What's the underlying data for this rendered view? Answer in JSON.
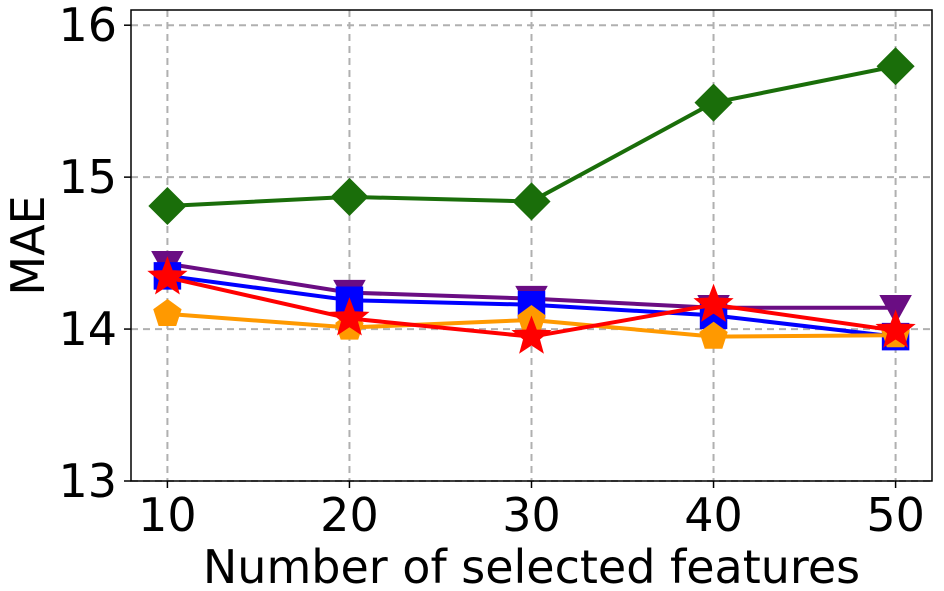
{
  "chart_data": {
    "type": "line",
    "title": "",
    "xlabel": "Number of selected features",
    "ylabel": "MAE",
    "x": [
      10,
      20,
      30,
      40,
      50
    ],
    "xticks": [
      "10",
      "20",
      "30",
      "40",
      "50"
    ],
    "yticks": [
      "13",
      "14",
      "15",
      "16"
    ],
    "ylim": [
      13,
      16.1
    ],
    "grid": true,
    "series": [
      {
        "color": "#1a6e0a",
        "marker": "diamond",
        "values": [
          14.81,
          14.87,
          14.84,
          15.49,
          15.73
        ]
      },
      {
        "color": "#6a0d83",
        "marker": "triangle-down",
        "values": [
          14.43,
          14.24,
          14.2,
          14.14,
          14.14
        ]
      },
      {
        "color": "#0000ff",
        "marker": "square",
        "values": [
          14.35,
          14.19,
          14.16,
          14.09,
          13.95
        ]
      },
      {
        "color": "#ff9900",
        "marker": "pentagon",
        "values": [
          14.1,
          14.01,
          14.06,
          13.95,
          13.96
        ]
      },
      {
        "color": "#ff0000",
        "marker": "star",
        "values": [
          14.34,
          14.07,
          13.95,
          14.16,
          13.99
        ]
      }
    ]
  }
}
